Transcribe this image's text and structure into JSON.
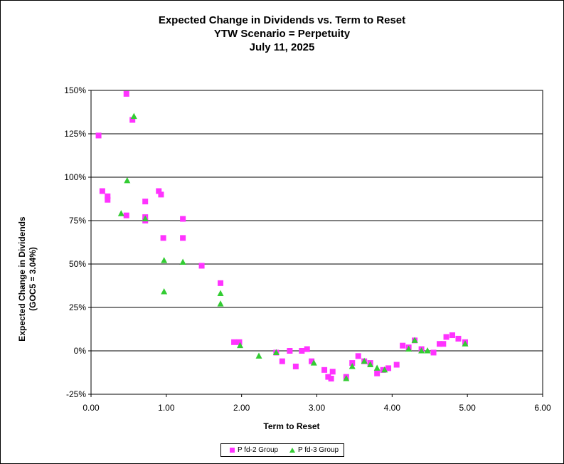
{
  "chart_data": {
    "type": "scatter",
    "title": "Expected Change in Dividends vs. Term to Reset",
    "subtitle": "YTW Scenario = Perpetuity",
    "date": "July 11, 2025",
    "xlabel": "Term to Reset",
    "ylabel": "Expected Change in Dividends",
    "ylabel2": "(GOC5 = 3.04%)",
    "xlim": [
      0,
      6
    ],
    "ylim": [
      -0.25,
      1.5
    ],
    "x_ticks": [
      0,
      1,
      2,
      3,
      4,
      5,
      6
    ],
    "x_tick_labels": [
      "0.00",
      "1.00",
      "2.00",
      "3.00",
      "4.00",
      "5.00",
      "6.00"
    ],
    "y_ticks": [
      -0.25,
      0,
      0.25,
      0.5,
      0.75,
      1.0,
      1.25,
      1.5
    ],
    "y_tick_labels": [
      "-25%",
      "0%",
      "25%",
      "50%",
      "75%",
      "100%",
      "125%",
      "150%"
    ],
    "grid": "horizontal",
    "legend_position": "bottom",
    "series": [
      {
        "name": "P fd-2 Group",
        "marker": "square",
        "color": "#ff33ff",
        "points": [
          [
            0.1,
            1.24
          ],
          [
            0.15,
            0.92
          ],
          [
            0.22,
            0.89
          ],
          [
            0.22,
            0.87
          ],
          [
            0.47,
            1.48
          ],
          [
            0.47,
            0.78
          ],
          [
            0.55,
            1.33
          ],
          [
            0.72,
            0.86
          ],
          [
            0.72,
            0.77
          ],
          [
            0.72,
            0.75
          ],
          [
            0.9,
            0.92
          ],
          [
            0.93,
            0.9
          ],
          [
            0.96,
            0.65
          ],
          [
            1.22,
            0.76
          ],
          [
            1.22,
            0.65
          ],
          [
            1.47,
            0.49
          ],
          [
            1.72,
            0.39
          ],
          [
            1.9,
            0.05
          ],
          [
            1.97,
            0.05
          ],
          [
            2.46,
            -0.01
          ],
          [
            2.54,
            -0.06
          ],
          [
            2.64,
            0.0
          ],
          [
            2.72,
            -0.09
          ],
          [
            2.8,
            0.0
          ],
          [
            2.87,
            0.01
          ],
          [
            2.93,
            -0.06
          ],
          [
            3.1,
            -0.11
          ],
          [
            3.15,
            -0.15
          ],
          [
            3.19,
            -0.16
          ],
          [
            3.21,
            -0.12
          ],
          [
            3.39,
            -0.15
          ],
          [
            3.47,
            -0.07
          ],
          [
            3.55,
            -0.03
          ],
          [
            3.63,
            -0.06
          ],
          [
            3.71,
            -0.07
          ],
          [
            3.8,
            -0.13
          ],
          [
            3.88,
            -0.11
          ],
          [
            3.95,
            -0.1
          ],
          [
            4.06,
            -0.08
          ],
          [
            4.14,
            0.03
          ],
          [
            4.22,
            0.02
          ],
          [
            4.3,
            0.06
          ],
          [
            4.39,
            0.01
          ],
          [
            4.55,
            -0.01
          ],
          [
            4.63,
            0.04
          ],
          [
            4.68,
            0.04
          ],
          [
            4.72,
            0.08
          ],
          [
            4.8,
            0.09
          ],
          [
            4.88,
            0.07
          ],
          [
            4.97,
            0.05
          ]
        ]
      },
      {
        "name": "P fd-3 Group",
        "marker": "triangle",
        "color": "#33cc33",
        "points": [
          [
            0.4,
            0.79
          ],
          [
            0.48,
            0.98
          ],
          [
            0.57,
            1.35
          ],
          [
            0.72,
            0.76
          ],
          [
            0.97,
            0.52
          ],
          [
            0.97,
            0.34
          ],
          [
            1.22,
            0.51
          ],
          [
            1.72,
            0.33
          ],
          [
            1.72,
            0.27
          ],
          [
            1.98,
            0.03
          ],
          [
            2.23,
            -0.03
          ],
          [
            2.46,
            -0.01
          ],
          [
            2.96,
            -0.07
          ],
          [
            3.39,
            -0.16
          ],
          [
            3.47,
            -0.09
          ],
          [
            3.63,
            -0.06
          ],
          [
            3.71,
            -0.08
          ],
          [
            3.8,
            -0.1
          ],
          [
            3.9,
            -0.11
          ],
          [
            4.22,
            0.01
          ],
          [
            4.3,
            0.06
          ],
          [
            4.39,
            0.0
          ],
          [
            4.47,
            0.0
          ],
          [
            4.97,
            0.04
          ]
        ]
      }
    ]
  }
}
